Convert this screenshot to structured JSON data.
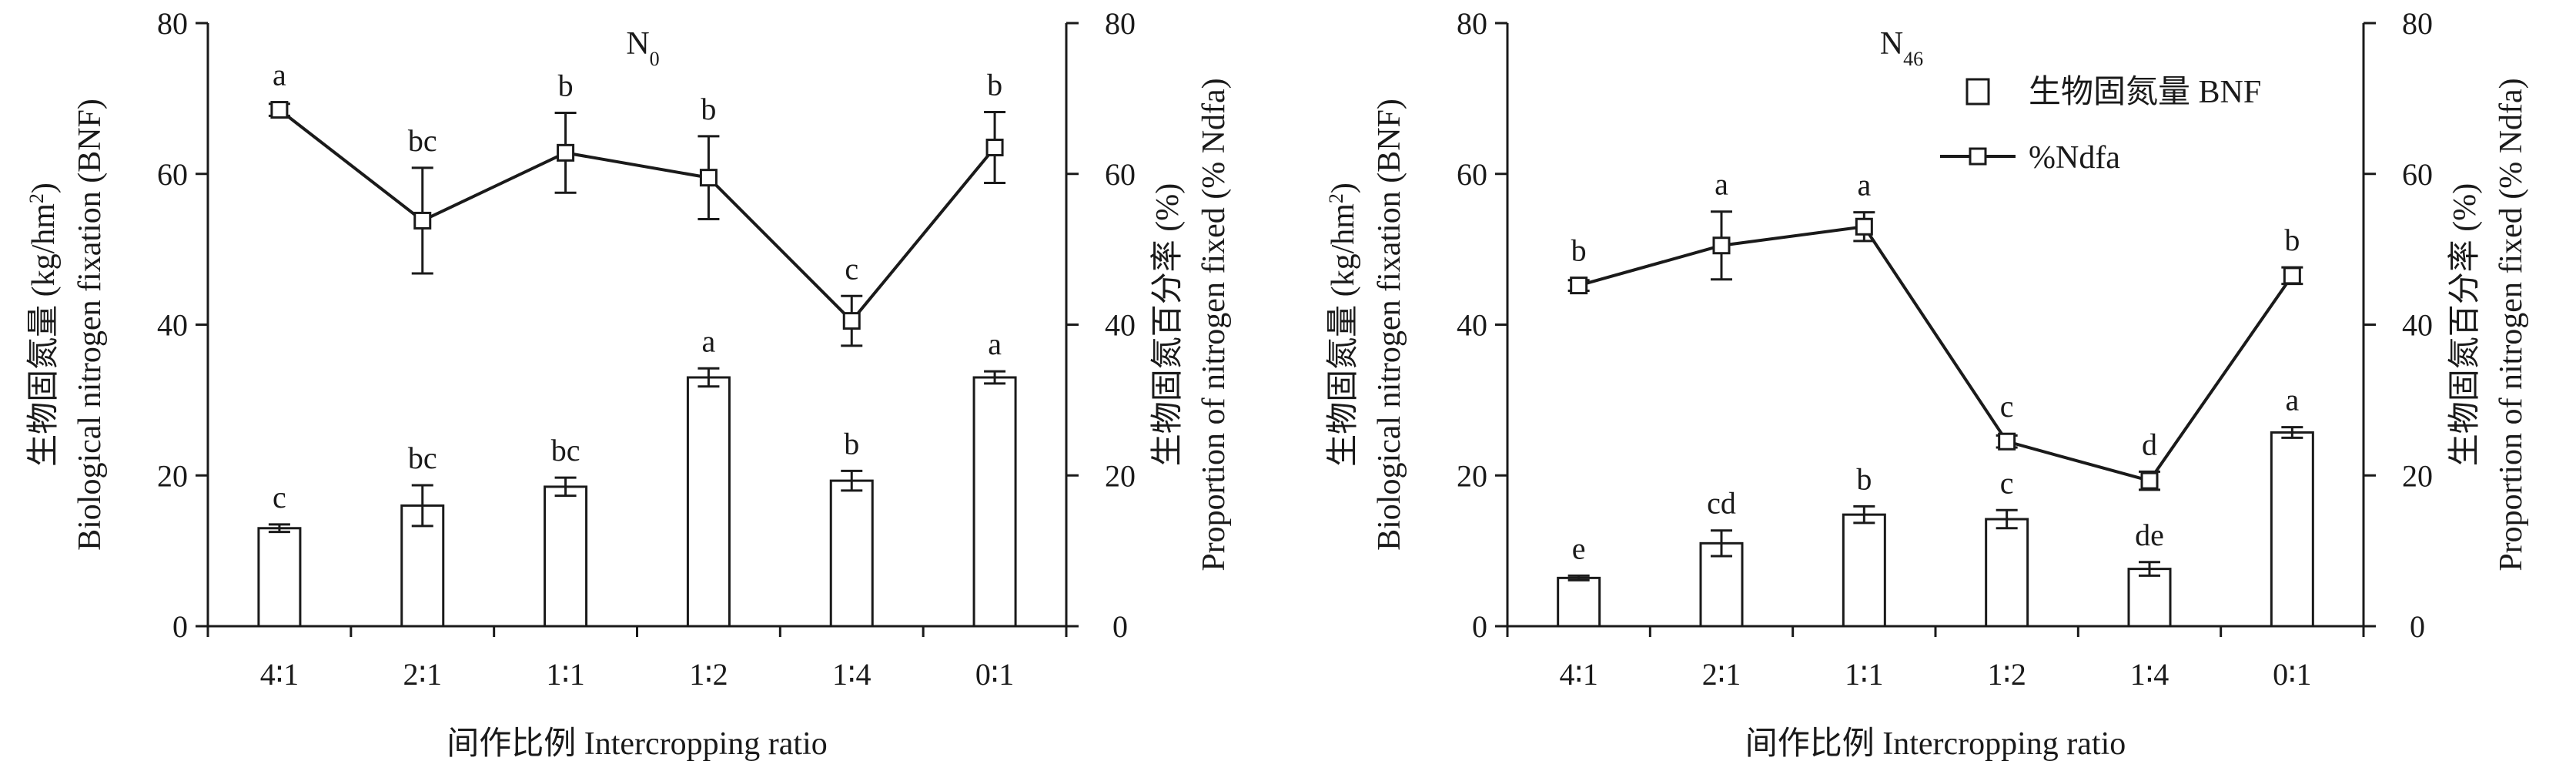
{
  "chart_data": [
    {
      "type": "bar",
      "title": "N",
      "title_sub": "0",
      "categories": [
        "4∶1",
        "2∶1",
        "1∶1",
        "1∶2",
        "1∶4",
        "0∶1"
      ],
      "xlabel": "间作比例 Intercropping ratio",
      "ylabel_left_cn": "生物固氮量 (kg/hm",
      "ylabel_left_cn_sup": "2",
      "ylabel_left_cn_end": ")",
      "ylabel_left_en": "Biological nitrogen fixation (BNF)",
      "ylabel_right_cn": "生物固氮百分率 (%)",
      "ylabel_right_en": "Proportion of  nitrogen fixed (% Ndfa)",
      "ylim": [
        0,
        80
      ],
      "yticks": [
        "0",
        "20",
        "40",
        "60",
        "80"
      ],
      "y2ticks": [
        "0",
        "20",
        "40",
        "60",
        "80"
      ],
      "legend": null,
      "series": [
        {
          "kind": "bar",
          "values": [
            13,
            16,
            18.5,
            33,
            19.3,
            33
          ],
          "errors": [
            0.5,
            2.7,
            1.2,
            1.2,
            1.3,
            0.8
          ],
          "letters": [
            "c",
            "bc",
            "bc",
            "a",
            "b",
            "a"
          ]
        },
        {
          "kind": "line",
          "values": [
            68.5,
            53.8,
            62.8,
            59.5,
            40.5,
            63.5
          ],
          "errors": [
            0.8,
            7,
            5.3,
            5.5,
            3.3,
            4.7
          ],
          "letters": [
            "a",
            "bc",
            "b",
            "b",
            "c",
            "b"
          ]
        }
      ]
    },
    {
      "type": "bar",
      "title": "N",
      "title_sub": "46",
      "categories": [
        "4∶1",
        "2∶1",
        "1∶1",
        "1∶2",
        "1∶4",
        "0∶1"
      ],
      "xlabel": "间作比例 Intercropping ratio",
      "ylabel_left_cn": "生物固氮量 (kg/hm",
      "ylabel_left_cn_sup": "2",
      "ylabel_left_cn_end": ")",
      "ylabel_left_en": "Biological nitrogen fixation (BNF)",
      "ylabel_right_cn": "生物固氮百分率 (%)",
      "ylabel_right_en": "Proportion of  nitrogen fixed (% Ndfa)",
      "ylim": [
        0,
        80
      ],
      "yticks": [
        "0",
        "20",
        "40",
        "60",
        "80"
      ],
      "y2ticks": [
        "0",
        "20",
        "40",
        "60",
        "80"
      ],
      "legend": {
        "placement": "top-right",
        "bar_label": "生物固氮量 BNF",
        "line_label": "%Ndfa"
      },
      "series": [
        {
          "kind": "bar",
          "values": [
            6.4,
            11,
            14.8,
            14.2,
            7.6,
            25.7
          ],
          "errors": [
            0.3,
            1.7,
            1.1,
            1.2,
            0.9,
            0.7
          ],
          "letters": [
            "e",
            "cd",
            "b",
            "c",
            "de",
            "a"
          ]
        },
        {
          "kind": "line",
          "values": [
            45.2,
            50.5,
            53,
            24.5,
            19.3,
            46.5
          ],
          "errors": [
            0.7,
            4.5,
            1.9,
            0.8,
            1.2,
            1.1
          ],
          "letters": [
            "b",
            "a",
            "a",
            "c",
            "d",
            "b"
          ]
        }
      ]
    }
  ]
}
